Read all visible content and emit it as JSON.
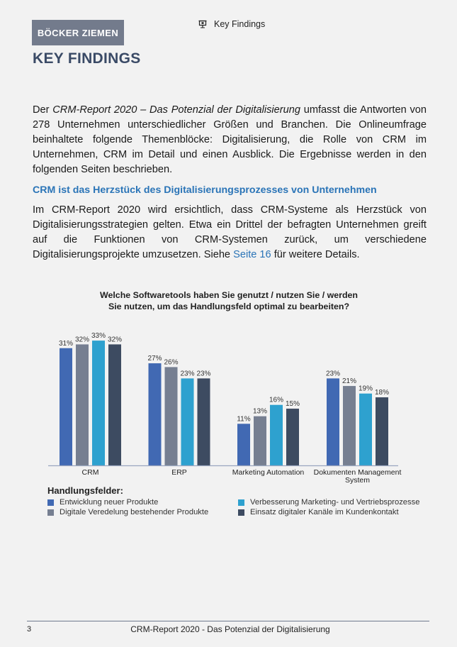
{
  "header": {
    "brand": "BÖCKER ZIEMEN",
    "section_label": "Key Findings",
    "section_icon": "presentation-board-icon"
  },
  "page_title": "KEY FINDINGS",
  "intro": {
    "prefix": "Der ",
    "italic": "CRM-Report 2020 – Das Potenzial der Digitalisierung",
    "suffix": " umfasst die Antworten von 278 Unternehmen unterschiedlicher Größen und Branchen. Die Onlineumfrage beinhaltete folgende Themenblöcke: Digitalisierung, die Rolle von CRM im Unternehmen, CRM im Detail und einen Ausblick. Die Ergebnisse werden in den folgenden Seiten beschrieben."
  },
  "section": {
    "heading": "CRM ist das Herzstück des Digitalisierungsprozesses von Unternehmen",
    "body_prefix": "Im CRM-Report 2020 wird ersichtlich, dass CRM-Systeme als Herzstück von Digitalisierungsstrategien gelten. Etwa ein Drittel der befragten Unternehmen greift auf die Funktionen von CRM-Systemen zurück, um verschiedene Digitalisierungsprojekte umzusetzen. Siehe ",
    "link": "Seite 16",
    "body_suffix": " für weitere Details."
  },
  "chart_data": {
    "type": "bar",
    "title": "Welche Softwaretools haben Sie genutzt / nutzen Sie / werden Sie nutzen, um das Handlungsfeld optimal zu bearbeiten?",
    "title_line1": "Welche Softwaretools haben Sie genutzt / nutzen Sie / werden",
    "title_line2": "Sie nutzen, um das Handlungsfeld optimal zu bearbeiten?",
    "xlabel": "",
    "ylabel": "",
    "ylim": [
      0,
      33
    ],
    "unit": "%",
    "grid": false,
    "categories": [
      "CRM",
      "ERP",
      "Marketing Automation",
      "Dokumenten Management System"
    ],
    "series": [
      {
        "name": "Entwicklung neuer Produkte",
        "color": "#4169b3",
        "values": [
          31,
          27,
          11,
          23
        ]
      },
      {
        "name": "Digitale Veredelung bestehender Produkte",
        "color": "#767f91",
        "values": [
          32,
          26,
          13,
          21
        ]
      },
      {
        "name": "Verbesserung Marketing- und Vertriebsprozesse",
        "color": "#2ea1cf",
        "values": [
          33,
          23,
          16,
          19
        ]
      },
      {
        "name": "Einsatz digitaler Kanäle im Kundenkontakt",
        "color": "#3d4b61",
        "values": [
          32,
          23,
          15,
          18
        ]
      }
    ],
    "legend_title": "Handlungsfelder:",
    "legend_placement": "bottom"
  },
  "footer": {
    "page_number": "3",
    "title": "CRM-Report 2020 - Das Potenzial der Digitalisierung"
  }
}
